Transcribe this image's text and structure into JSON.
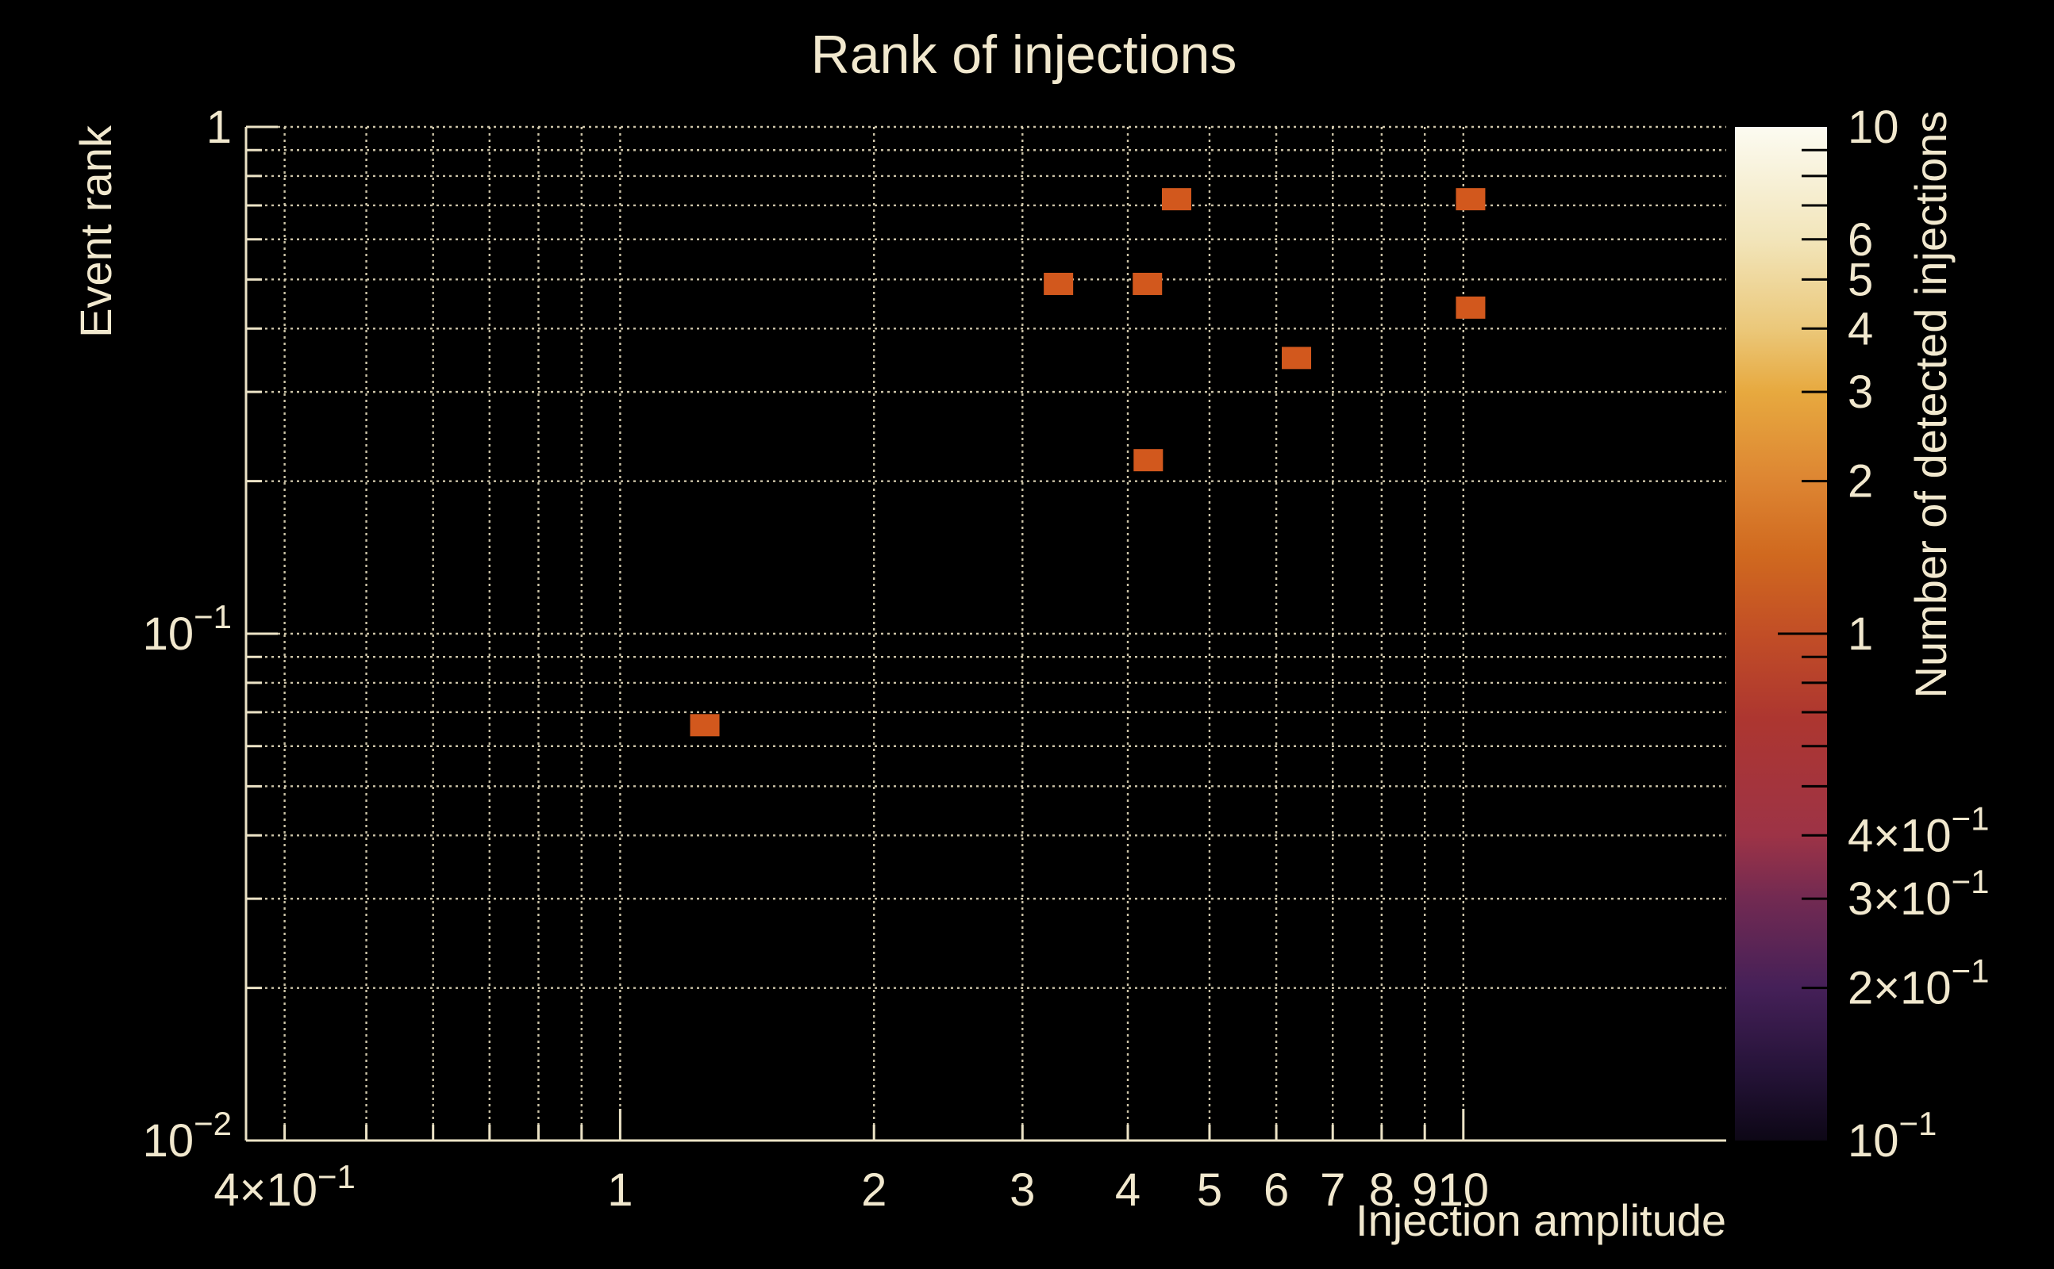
{
  "colors": {
    "background": "#000000",
    "text": "#f1e8ce",
    "axis": "#ece3c6",
    "grid": "#d8cfb2",
    "marker": "#d2581d",
    "colorbar_tick": "#000000"
  },
  "chart_data": {
    "type": "heatmap",
    "title": "Rank of injections",
    "xlabel": "Injection amplitude",
    "ylabel": "Event rank",
    "colorbar_label": "Number of detected injections",
    "x_scale": "log",
    "y_scale": "log",
    "color_scale": "log",
    "grid": true,
    "xlim": [
      0.36,
      20.5
    ],
    "ylim": [
      0.01,
      1
    ],
    "clim": [
      0.1,
      10
    ],
    "x_ticks_labeled": [
      {
        "v": 0.4,
        "label": "4×10",
        "sup": "−1"
      },
      {
        "v": 1,
        "label": "1"
      },
      {
        "v": 2,
        "label": "2"
      },
      {
        "v": 3,
        "label": "3"
      },
      {
        "v": 4,
        "label": "4"
      },
      {
        "v": 5,
        "label": "5"
      },
      {
        "v": 6,
        "label": "6"
      },
      {
        "v": 7,
        "label": "7"
      },
      {
        "v": 8,
        "label": "8"
      },
      {
        "v": 9,
        "label": "9"
      },
      {
        "v": 10,
        "label": "10"
      }
    ],
    "x_gridlines_minor": [
      0.5,
      0.6,
      0.7,
      0.8,
      0.9
    ],
    "x_major": [
      1,
      10
    ],
    "y_ticks_labeled": [
      {
        "v": 1,
        "label": "1"
      },
      {
        "v": 0.1,
        "label": "10",
        "sup": "−1"
      },
      {
        "v": 0.01,
        "label": "10",
        "sup": "−2"
      }
    ],
    "y_gridlines_minor": [
      0.9,
      0.8,
      0.7,
      0.6,
      0.5,
      0.4,
      0.3,
      0.2,
      0.09,
      0.08,
      0.07,
      0.06,
      0.05,
      0.04,
      0.03,
      0.02
    ],
    "y_major": [
      1,
      0.1,
      0.01
    ],
    "colorbar_ticks_labeled": [
      {
        "v": 10,
        "label": "10"
      },
      {
        "v": 6,
        "label": "6"
      },
      {
        "v": 5,
        "label": "5"
      },
      {
        "v": 4,
        "label": "4"
      },
      {
        "v": 3,
        "label": "3"
      },
      {
        "v": 2,
        "label": "2"
      },
      {
        "v": 1,
        "label": "1"
      },
      {
        "v": 0.4,
        "label": "4×10",
        "sup": "−1"
      },
      {
        "v": 0.3,
        "label": "3×10",
        "sup": "−1"
      },
      {
        "v": 0.2,
        "label": "2×10",
        "sup": "−1"
      },
      {
        "v": 0.1,
        "label": "10",
        "sup": "−1"
      }
    ],
    "colorbar_ticks_minor": [
      9,
      8,
      7,
      0.9,
      0.8,
      0.7,
      0.6,
      0.5
    ],
    "colorbar_major_tick": 1,
    "colormap_stops": [
      {
        "v": 10,
        "color": "#fcfbf1"
      },
      {
        "v": 6,
        "color": "#f2e5ba"
      },
      {
        "v": 4,
        "color": "#ebc87a"
      },
      {
        "v": 3,
        "color": "#e7a93f"
      },
      {
        "v": 2,
        "color": "#dd8532"
      },
      {
        "v": 1.43,
        "color": "#d0691f"
      },
      {
        "v": 1,
        "color": "#c24e26"
      },
      {
        "v": 0.68,
        "color": "#ad3630"
      },
      {
        "v": 0.4,
        "color": "#9d3346"
      },
      {
        "v": 0.3,
        "color": "#722a52"
      },
      {
        "v": 0.2,
        "color": "#452058"
      },
      {
        "v": 0.137,
        "color": "#251338"
      },
      {
        "v": 0.1,
        "color": "#0d0716"
      }
    ],
    "marker_px": {
      "w": 37,
      "h": 28
    },
    "points": [
      {
        "x": 4.57,
        "y": 0.72,
        "count": 1
      },
      {
        "x": 10.2,
        "y": 0.72,
        "count": 1
      },
      {
        "x": 3.31,
        "y": 0.49,
        "count": 1
      },
      {
        "x": 4.22,
        "y": 0.49,
        "count": 1
      },
      {
        "x": 10.2,
        "y": 0.44,
        "count": 1
      },
      {
        "x": 6.34,
        "y": 0.35,
        "count": 1
      },
      {
        "x": 4.23,
        "y": 0.22,
        "count": 1
      },
      {
        "x": 1.26,
        "y": 0.066,
        "count": 1
      }
    ]
  }
}
